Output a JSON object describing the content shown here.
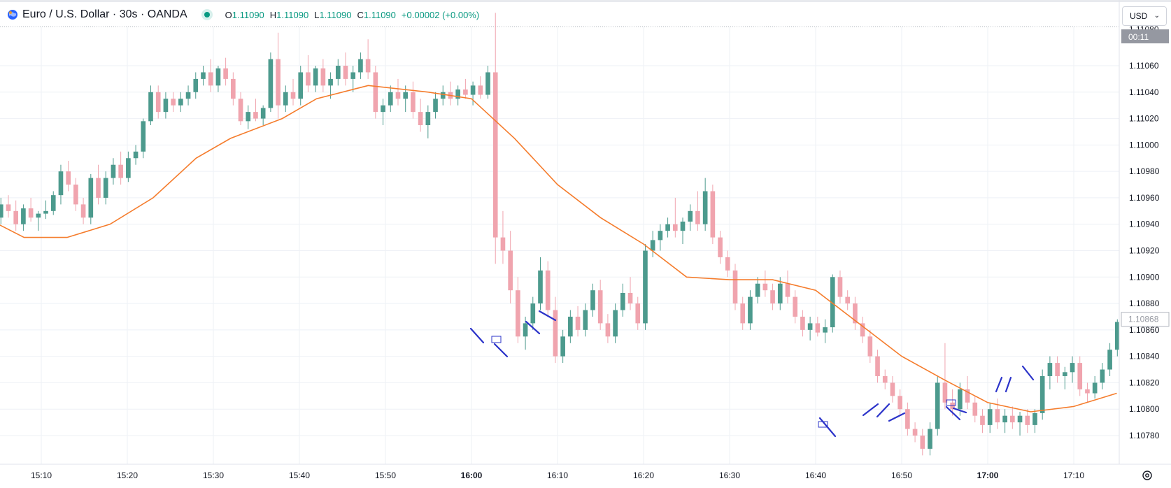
{
  "header": {
    "title": "Euro / U.S. Dollar · 30s · OANDA",
    "ohlc": [
      {
        "key": "O",
        "value": "1.11090"
      },
      {
        "key": "H",
        "value": "1.11090"
      },
      {
        "key": "L",
        "value": "1.11090"
      },
      {
        "key": "C",
        "value": "1.11090"
      }
    ],
    "change": "+0.00002 (+0.00%)"
  },
  "currency_selector": {
    "label": "USD"
  },
  "price_scale": {
    "countdown": "00:11",
    "current_price": "1.10868"
  },
  "colors": {
    "up": "#4c9a8d",
    "down": "#f0a4ae",
    "ema": "#f57c2c",
    "annotation": "#2b33c9",
    "grid": "#eef1f6"
  },
  "chart_data": {
    "type": "candlestick",
    "symbol": "EURUSD",
    "interval": "30s",
    "y_axis": {
      "ticks": [
        "1.11060",
        "1.11040",
        "1.11020",
        "1.11000",
        "1.10980",
        "1.10960",
        "1.10940",
        "1.10920",
        "1.10900",
        "1.10880",
        "1.10860",
        "1.10840",
        "1.10820",
        "1.10800",
        "1.10780"
      ],
      "range": [
        1.10752,
        1.11108
      ]
    },
    "x_axis": {
      "ticks": [
        {
          "label": "15:10",
          "bold": false
        },
        {
          "label": "15:20",
          "bold": false
        },
        {
          "label": "15:30",
          "bold": false
        },
        {
          "label": "15:40",
          "bold": false
        },
        {
          "label": "15:50",
          "bold": false
        },
        {
          "label": "16:00",
          "bold": true
        },
        {
          "label": "16:10",
          "bold": false
        },
        {
          "label": "16:20",
          "bold": false
        },
        {
          "label": "16:30",
          "bold": false
        },
        {
          "label": "16:40",
          "bold": false
        },
        {
          "label": "16:50",
          "bold": false
        },
        {
          "label": "17:00",
          "bold": true
        },
        {
          "label": "17:10",
          "bold": false
        }
      ]
    },
    "series": [
      {
        "name": "",
        "type": "moving-average",
        "values_by_time": [
          [
            "15:05",
            1.1094
          ],
          [
            "15:08",
            1.1093
          ],
          [
            "15:13",
            1.1093
          ],
          [
            "15:18",
            1.1094
          ],
          [
            "15:23",
            1.1096
          ],
          [
            "15:28",
            1.1099
          ],
          [
            "15:32",
            1.11005
          ],
          [
            "15:38",
            1.1102
          ],
          [
            "15:42",
            1.11035
          ],
          [
            "15:48",
            1.11045
          ],
          [
            "15:55",
            1.1104
          ],
          [
            "16:00",
            1.11035
          ],
          [
            "16:05",
            1.11005
          ],
          [
            "16:10",
            1.1097
          ],
          [
            "16:15",
            1.10945
          ],
          [
            "16:20",
            1.10925
          ],
          [
            "16:25",
            1.109
          ],
          [
            "16:30",
            1.10898
          ],
          [
            "16:35",
            1.10898
          ],
          [
            "16:40",
            1.1089
          ],
          [
            "16:45",
            1.10865
          ],
          [
            "16:50",
            1.1084
          ],
          [
            "16:55",
            1.10822
          ],
          [
            "17:00",
            1.10805
          ],
          [
            "17:05",
            1.10798
          ],
          [
            "17:10",
            1.10802
          ],
          [
            "17:15",
            1.10812
          ]
        ]
      }
    ],
    "candles_ohlc_summary": "Approx. 260 thirty-second candles between ~15:05 and ~17:15; price rises from ~1.1093 to ~1.1105 by 15:35, ranges to 16:00, drops sharply to ~1.1085 at 16:00, rebounds to ~1.1096 at 16:20, declines to ~1.1077 by 16:48, then recovers to ~1.1087 at 17:15.",
    "candles": [
      [
        1.10925,
        1.10948,
        1.1091,
        1.10945
      ],
      [
        1.10945,
        1.1096,
        1.1094,
        1.10955
      ],
      [
        1.10955,
        1.10962,
        1.10945,
        1.1095
      ],
      [
        1.1095,
        1.10958,
        1.10935,
        1.1094
      ],
      [
        1.1094,
        1.10955,
        1.10935,
        1.10952
      ],
      [
        1.10952,
        1.1096,
        1.10942,
        1.10945
      ],
      [
        1.10945,
        1.1095,
        1.10935,
        1.10948
      ],
      [
        1.10948,
        1.10958,
        1.10944,
        1.1095
      ],
      [
        1.1095,
        1.10965,
        1.10947,
        1.10962
      ],
      [
        1.10962,
        1.10985,
        1.10955,
        1.1098
      ],
      [
        1.1098,
        1.10988,
        1.10965,
        1.1097
      ],
      [
        1.1097,
        1.10975,
        1.1095,
        1.10955
      ],
      [
        1.10955,
        1.1096,
        1.1094,
        1.10945
      ],
      [
        1.10945,
        1.10978,
        1.1094,
        1.10975
      ],
      [
        1.10975,
        1.10985,
        1.10955,
        1.1096
      ],
      [
        1.1096,
        1.1098,
        1.10955,
        1.10975
      ],
      [
        1.10975,
        1.1099,
        1.1097,
        1.10985
      ],
      [
        1.10985,
        1.10995,
        1.1097,
        1.10975
      ],
      [
        1.10975,
        1.10995,
        1.10972,
        1.1099
      ],
      [
        1.1099,
        1.11,
        1.10985,
        1.10995
      ],
      [
        1.10995,
        1.1102,
        1.1099,
        1.11018
      ],
      [
        1.11018,
        1.11045,
        1.11015,
        1.1104
      ],
      [
        1.1104,
        1.11045,
        1.1102,
        1.11025
      ],
      [
        1.11025,
        1.1104,
        1.1102,
        1.11035
      ],
      [
        1.11035,
        1.1104,
        1.11025,
        1.1103
      ],
      [
        1.1103,
        1.1104,
        1.11025,
        1.11035
      ],
      [
        1.11035,
        1.11045,
        1.1103,
        1.1104
      ],
      [
        1.1104,
        1.11055,
        1.11035,
        1.1105
      ],
      [
        1.1105,
        1.1106,
        1.11045,
        1.11055
      ],
      [
        1.11055,
        1.11065,
        1.1104,
        1.11045
      ],
      [
        1.11045,
        1.1106,
        1.1104,
        1.11058
      ],
      [
        1.11058,
        1.11066,
        1.11045,
        1.1105
      ],
      [
        1.1105,
        1.11055,
        1.1103,
        1.11035
      ],
      [
        1.11035,
        1.1104,
        1.11015,
        1.11018
      ],
      [
        1.11018,
        1.1103,
        1.11012,
        1.11025
      ],
      [
        1.11025,
        1.11035,
        1.11018,
        1.1102
      ],
      [
        1.1102,
        1.1103,
        1.11015,
        1.11028
      ],
      [
        1.11028,
        1.1107,
        1.11025,
        1.11065
      ],
      [
        1.11065,
        1.11085,
        1.1102,
        1.1103
      ],
      [
        1.1103,
        1.11045,
        1.11025,
        1.1104
      ],
      [
        1.1104,
        1.1105,
        1.1103,
        1.11035
      ],
      [
        1.11035,
        1.1106,
        1.1103,
        1.11055
      ],
      [
        1.11055,
        1.11068,
        1.1104,
        1.11045
      ],
      [
        1.11045,
        1.1106,
        1.1104,
        1.11058
      ],
      [
        1.11058,
        1.11065,
        1.1104,
        1.11045
      ],
      [
        1.11045,
        1.11055,
        1.11035,
        1.1105
      ],
      [
        1.1105,
        1.11065,
        1.11045,
        1.1106
      ],
      [
        1.1106,
        1.1107,
        1.11045,
        1.1105
      ],
      [
        1.1105,
        1.1106,
        1.1104,
        1.11055
      ],
      [
        1.11055,
        1.1107,
        1.1105,
        1.11065
      ],
      [
        1.11065,
        1.1108,
        1.1105,
        1.11055
      ],
      [
        1.11055,
        1.1106,
        1.1102,
        1.11025
      ],
      [
        1.11025,
        1.11035,
        1.11015,
        1.1103
      ],
      [
        1.1103,
        1.11045,
        1.11025,
        1.1104
      ],
      [
        1.1104,
        1.1105,
        1.1103,
        1.11035
      ],
      [
        1.11035,
        1.11045,
        1.11025,
        1.1104
      ],
      [
        1.1104,
        1.11048,
        1.1102,
        1.11025
      ],
      [
        1.11025,
        1.11035,
        1.1101,
        1.11015
      ],
      [
        1.11015,
        1.1103,
        1.11005,
        1.11025
      ],
      [
        1.11025,
        1.1104,
        1.1102,
        1.11035
      ],
      [
        1.11035,
        1.11045,
        1.1103,
        1.1104
      ],
      [
        1.1104,
        1.11048,
        1.1103,
        1.11035
      ],
      [
        1.11035,
        1.11045,
        1.1103,
        1.11042
      ],
      [
        1.11042,
        1.1105,
        1.11035,
        1.11038
      ],
      [
        1.11038,
        1.11048,
        1.1103,
        1.11045
      ],
      [
        1.11045,
        1.11052,
        1.11035,
        1.11038
      ],
      [
        1.11038,
        1.1106,
        1.11035,
        1.11055
      ],
      [
        1.11055,
        1.111,
        1.1091,
        1.1093
      ],
      [
        1.1093,
        1.1095,
        1.1091,
        1.1092
      ],
      [
        1.1092,
        1.10935,
        1.1088,
        1.1089
      ],
      [
        1.1089,
        1.109,
        1.1085,
        1.10855
      ],
      [
        1.10855,
        1.1087,
        1.10845,
        1.10865
      ],
      [
        1.10865,
        1.10885,
        1.1086,
        1.1088
      ],
      [
        1.1088,
        1.10915,
        1.10875,
        1.10905
      ],
      [
        1.10905,
        1.10912,
        1.1087,
        1.10875
      ],
      [
        1.10875,
        1.10885,
        1.10835,
        1.1084
      ],
      [
        1.1084,
        1.1086,
        1.10835,
        1.10855
      ],
      [
        1.10855,
        1.10875,
        1.1085,
        1.1087
      ],
      [
        1.1087,
        1.10878,
        1.10855,
        1.1086
      ],
      [
        1.1086,
        1.1088,
        1.10855,
        1.10875
      ],
      [
        1.10875,
        1.10895,
        1.1087,
        1.1089
      ],
      [
        1.1089,
        1.10898,
        1.1086,
        1.10865
      ],
      [
        1.10865,
        1.10872,
        1.1085,
        1.10855
      ],
      [
        1.10855,
        1.1088,
        1.1085,
        1.10875
      ],
      [
        1.10875,
        1.10895,
        1.1087,
        1.10888
      ],
      [
        1.10888,
        1.109,
        1.10875,
        1.1088
      ],
      [
        1.1088,
        1.10885,
        1.1086,
        1.10865
      ],
      [
        1.10865,
        1.10925,
        1.1086,
        1.1092
      ],
      [
        1.1092,
        1.10935,
        1.10915,
        1.10928
      ],
      [
        1.10928,
        1.1094,
        1.1092,
        1.10935
      ],
      [
        1.10935,
        1.10945,
        1.1093,
        1.1094
      ],
      [
        1.1094,
        1.1096,
        1.1093,
        1.10935
      ],
      [
        1.10935,
        1.10945,
        1.10925,
        1.10942
      ],
      [
        1.10942,
        1.10955,
        1.10935,
        1.1095
      ],
      [
        1.1095,
        1.10965,
        1.10935,
        1.1094
      ],
      [
        1.1094,
        1.10975,
        1.10935,
        1.10965
      ],
      [
        1.10965,
        1.1097,
        1.10925,
        1.1093
      ],
      [
        1.1093,
        1.10935,
        1.1091,
        1.10915
      ],
      [
        1.10915,
        1.1092,
        1.109,
        1.10905
      ],
      [
        1.10905,
        1.1091,
        1.10875,
        1.1088
      ],
      [
        1.1088,
        1.10885,
        1.1086,
        1.10865
      ],
      [
        1.10865,
        1.1089,
        1.1086,
        1.10885
      ],
      [
        1.10885,
        1.109,
        1.1088,
        1.10895
      ],
      [
        1.10895,
        1.10905,
        1.10885,
        1.1089
      ],
      [
        1.1089,
        1.10895,
        1.10875,
        1.1088
      ],
      [
        1.1088,
        1.109,
        1.10875,
        1.10895
      ],
      [
        1.10895,
        1.10905,
        1.1088,
        1.10885
      ],
      [
        1.10885,
        1.1089,
        1.10865,
        1.1087
      ],
      [
        1.1087,
        1.10875,
        1.10855,
        1.1086
      ],
      [
        1.1086,
        1.1087,
        1.10852,
        1.10865
      ],
      [
        1.10865,
        1.1087,
        1.10855,
        1.10858
      ],
      [
        1.10858,
        1.10868,
        1.1085,
        1.10862
      ],
      [
        1.10862,
        1.10902,
        1.10858,
        1.109
      ],
      [
        1.109,
        1.10905,
        1.1088,
        1.10885
      ],
      [
        1.10885,
        1.1089,
        1.10875,
        1.1088
      ],
      [
        1.1088,
        1.10885,
        1.1086,
        1.10865
      ],
      [
        1.10865,
        1.1087,
        1.1085,
        1.10855
      ],
      [
        1.10855,
        1.1086,
        1.10835,
        1.1084
      ],
      [
        1.1084,
        1.10845,
        1.1082,
        1.10825
      ],
      [
        1.10825,
        1.1083,
        1.10815,
        1.1082
      ],
      [
        1.1082,
        1.10825,
        1.10805,
        1.1081
      ],
      [
        1.1081,
        1.10815,
        1.10795,
        1.108
      ],
      [
        1.108,
        1.10805,
        1.1078,
        1.10785
      ],
      [
        1.10785,
        1.1079,
        1.10775,
        1.1078
      ],
      [
        1.1078,
        1.10785,
        1.10765,
        1.1077
      ],
      [
        1.1077,
        1.1079,
        1.10765,
        1.10785
      ],
      [
        1.10785,
        1.10825,
        1.1078,
        1.1082
      ],
      [
        1.1082,
        1.1085,
        1.108,
        1.10805
      ],
      [
        1.10805,
        1.10815,
        1.10795,
        1.108
      ],
      [
        1.108,
        1.1082,
        1.10795,
        1.10815
      ],
      [
        1.10815,
        1.10825,
        1.108,
        1.10805
      ],
      [
        1.10805,
        1.1081,
        1.1079,
        1.10795
      ],
      [
        1.10795,
        1.108,
        1.10782,
        1.10788
      ],
      [
        1.10788,
        1.10805,
        1.10782,
        1.108
      ],
      [
        1.108,
        1.10808,
        1.10785,
        1.1079
      ],
      [
        1.1079,
        1.108,
        1.10782,
        1.10795
      ],
      [
        1.10795,
        1.10802,
        1.10785,
        1.1079
      ],
      [
        1.1079,
        1.10798,
        1.1078,
        1.10795
      ],
      [
        1.10795,
        1.108,
        1.10782,
        1.10788
      ],
      [
        1.10788,
        1.108,
        1.10782,
        1.10797
      ],
      [
        1.10797,
        1.1083,
        1.10792,
        1.10825
      ],
      [
        1.10825,
        1.1084,
        1.10815,
        1.10835
      ],
      [
        1.10835,
        1.1084,
        1.1082,
        1.10825
      ],
      [
        1.10825,
        1.10832,
        1.10815,
        1.10828
      ],
      [
        1.10828,
        1.1084,
        1.1082,
        1.10835
      ],
      [
        1.10835,
        1.1084,
        1.1081,
        1.10815
      ],
      [
        1.10815,
        1.1082,
        1.10805,
        1.10812
      ],
      [
        1.10812,
        1.10825,
        1.10808,
        1.1082
      ],
      [
        1.1082,
        1.10835,
        1.10815,
        1.1083
      ],
      [
        1.1083,
        1.1085,
        1.10825,
        1.10845
      ],
      [
        1.10845,
        1.10868,
        1.1084,
        1.10866
      ]
    ],
    "annotations": "Hand-drawn blue trend-line marks near local lows (around 16:05, 16:07, 16:12, 16:47, 16:53–16:58, 17:04, 17:09–17:12) and small blue boxes at swing lows."
  }
}
